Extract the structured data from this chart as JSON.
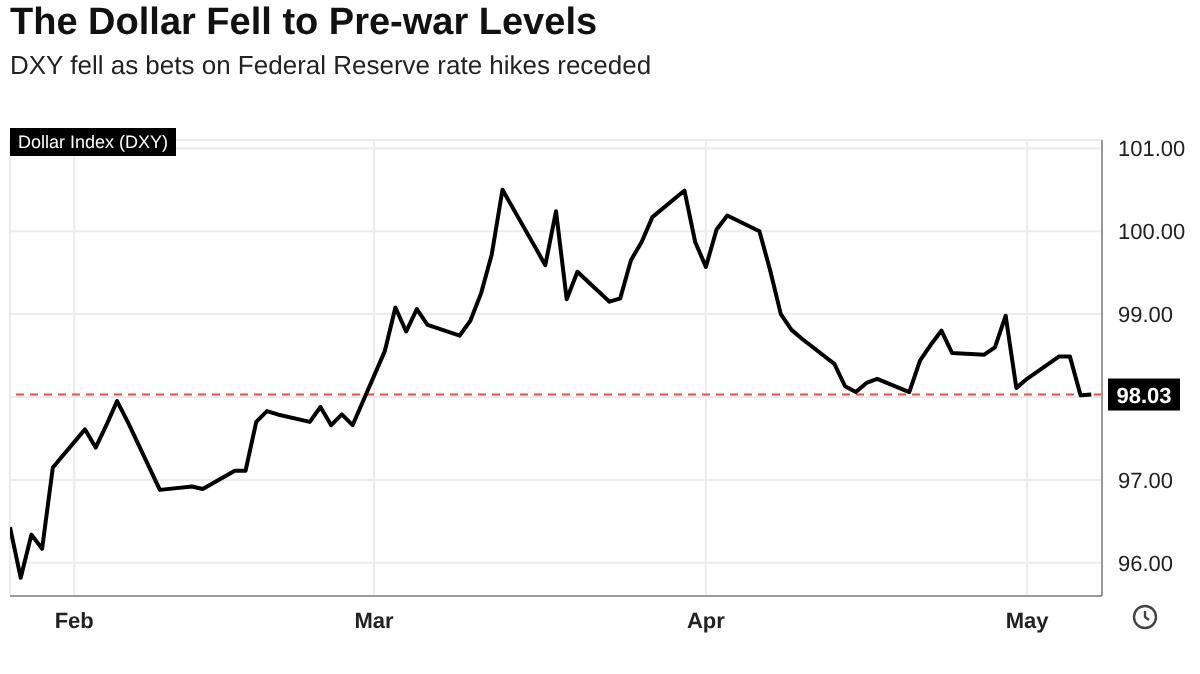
{
  "chart_data": {
    "type": "line",
    "title": "The Dollar Fell to Pre-war Levels",
    "subtitle": "DXY fell as bets on Federal Reserve rate hikes receded",
    "x": [
      "--01-26",
      "--01-27",
      "--01-28",
      "--01-29",
      "--01-30",
      "--02-02",
      "--02-03",
      "--02-04",
      "--02-05",
      "--02-06",
      "--02-09",
      "--02-12",
      "--02-13",
      "--02-16",
      "--02-17",
      "--02-18",
      "--02-19",
      "--02-20",
      "--02-23",
      "--02-24",
      "--02-25",
      "--02-26",
      "--02-27",
      "--03-02",
      "--03-03",
      "--03-04",
      "--03-05",
      "--03-06",
      "--03-09",
      "--03-10",
      "--03-11",
      "--03-12",
      "--03-13",
      "--03-16",
      "--03-17",
      "--03-18",
      "--03-19",
      "--03-20",
      "--03-23",
      "--03-24",
      "--03-25",
      "--03-26",
      "--03-27",
      "--03-30",
      "--03-31",
      "--04-01",
      "--04-02",
      "--04-03",
      "--04-06",
      "--04-07",
      "--04-08",
      "--04-09",
      "--04-10",
      "--04-13",
      "--04-14",
      "--04-15",
      "--04-16",
      "--04-17",
      "--04-20",
      "--04-21",
      "--04-22",
      "--04-23",
      "--04-24",
      "--04-27",
      "--04-28",
      "--04-29",
      "--04-30",
      "--05-01",
      "--05-04",
      "--05-05",
      "--05-06",
      "--05-07"
    ],
    "series": [
      {
        "name": "Dollar Index (DXY)",
        "color": "#000000",
        "values": [
          96.43,
          95.82,
          96.34,
          96.17,
          97.15,
          97.61,
          97.39,
          97.66,
          97.95,
          97.7,
          96.88,
          96.92,
          96.89,
          97.11,
          97.11,
          97.7,
          97.83,
          97.79,
          97.7,
          97.88,
          97.66,
          97.79,
          97.66,
          98.55,
          99.08,
          98.79,
          99.06,
          98.87,
          98.74,
          98.92,
          99.25,
          99.72,
          100.5,
          99.82,
          99.59,
          100.24,
          99.18,
          99.51,
          99.15,
          99.19,
          99.65,
          99.87,
          100.17,
          100.49,
          99.87,
          99.57,
          100.02,
          100.19,
          100.0,
          99.53,
          99.0,
          98.81,
          98.7,
          98.4,
          98.13,
          98.06,
          98.17,
          98.22,
          98.06,
          98.44,
          98.63,
          98.8,
          98.53,
          98.51,
          98.6,
          98.98,
          98.11,
          98.22,
          98.49,
          98.49,
          98.02,
          98.03
        ]
      }
    ],
    "xlim": [
      "--01-26",
      "--05-08"
    ],
    "xticks": [
      {
        "value": "--02-01",
        "label": "Feb"
      },
      {
        "value": "--03-01",
        "label": "Mar"
      },
      {
        "value": "--04-01",
        "label": "Apr"
      },
      {
        "value": "--05-01",
        "label": "May"
      }
    ],
    "ylim": [
      95.6,
      101.1
    ],
    "yticks": [
      {
        "value": 96,
        "label": "96.00"
      },
      {
        "value": 97,
        "label": "97.00"
      },
      {
        "value": 98,
        "label": null
      },
      {
        "value": 99,
        "label": "99.00"
      },
      {
        "value": 100,
        "label": "100.00"
      },
      {
        "value": 101,
        "label": "101.00"
      }
    ],
    "ref_lines": [
      {
        "axis": "y",
        "value": 98.03,
        "label": "98.03",
        "color": "#d9534f",
        "line_style": "dashed"
      }
    ],
    "grid": true,
    "legend": "top left",
    "line_style": "solid"
  }
}
